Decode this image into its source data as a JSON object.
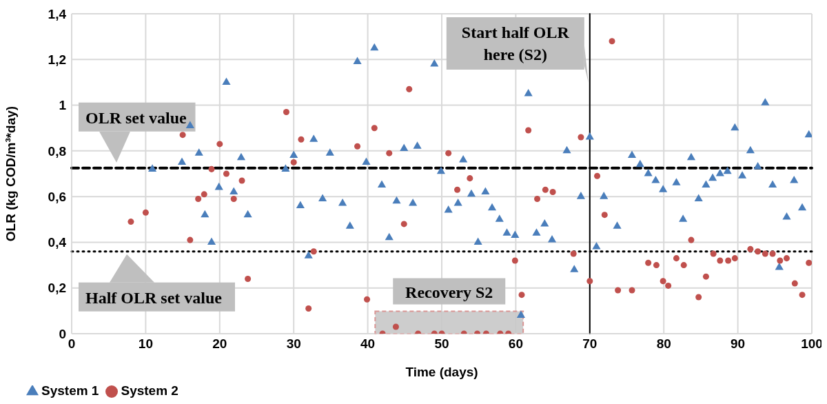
{
  "chart_data": {
    "type": "scatter",
    "xlabel": "Time (days)",
    "ylabel": "OLR (kg COD/m³*day)",
    "xlim": [
      0,
      100
    ],
    "xticks": [
      0,
      10,
      20,
      30,
      40,
      50,
      60,
      70,
      80,
      90,
      100
    ],
    "ylim": [
      0,
      1.4
    ],
    "yticks": [
      0,
      {
        "value": 0.2,
        "label": "0,2"
      },
      {
        "value": 0.4,
        "label": "0,4"
      },
      {
        "value": 0.6,
        "label": "0,6"
      },
      {
        "value": 0.8,
        "label": "0,8"
      },
      1,
      {
        "value": 1.2,
        "label": "1,2"
      },
      {
        "value": 1.4,
        "label": "1,4"
      }
    ],
    "grid": true,
    "legend": "bottom left",
    "series": [
      {
        "name": "System 1",
        "color": "#4a7ebb",
        "marker": "triangle",
        "x": [
          10.9,
          14.9,
          16.0,
          17.2,
          18.0,
          18.9,
          19.9,
          20.9,
          21.9,
          22.9,
          23.8,
          28.9,
          30.0,
          30.9,
          32.0,
          32.7,
          33.9,
          34.9,
          36.6,
          37.6,
          38.6,
          39.8,
          40.9,
          41.9,
          42.9,
          43.9,
          44.9,
          46.1,
          46.7,
          49.0,
          49.9,
          50.9,
          52.2,
          52.9,
          54.0,
          54.9,
          55.9,
          56.8,
          57.8,
          58.8,
          59.9,
          60.7,
          61.7,
          62.8,
          63.9,
          64.9,
          66.9,
          67.9,
          68.8,
          70.0,
          70.9,
          71.9,
          73.7,
          75.7,
          76.8,
          77.9,
          78.9,
          79.9,
          81.7,
          82.6,
          83.7,
          84.7,
          85.7,
          86.6,
          87.6,
          88.6,
          89.6,
          90.6,
          91.7,
          92.7,
          93.7,
          94.7,
          95.6,
          96.6,
          97.6,
          98.7,
          99.6
        ],
        "values": [
          0.72,
          0.75,
          0.91,
          0.79,
          0.52,
          0.4,
          0.64,
          1.1,
          0.62,
          0.77,
          0.52,
          0.72,
          0.78,
          0.56,
          0.34,
          0.85,
          0.59,
          0.79,
          0.57,
          0.47,
          1.19,
          0.75,
          1.25,
          0.65,
          0.42,
          0.58,
          0.81,
          0.57,
          0.82,
          1.18,
          0.71,
          0.54,
          0.57,
          0.76,
          0.61,
          0.4,
          0.62,
          0.55,
          0.5,
          0.44,
          0.43,
          0.08,
          1.05,
          0.44,
          0.48,
          0.41,
          0.8,
          0.28,
          0.6,
          0.86,
          0.38,
          0.6,
          0.47,
          0.78,
          0.74,
          0.7,
          0.67,
          0.63,
          0.66,
          0.5,
          0.77,
          0.59,
          0.65,
          0.68,
          0.7,
          0.71,
          0.9,
          0.69,
          0.8,
          0.73,
          1.01,
          0.65,
          0.29,
          0.51,
          0.67,
          0.55,
          0.87
        ]
      },
      {
        "name": "System 2",
        "color": "#c0504d",
        "marker": "circle",
        "x": [
          8.0,
          10.0,
          15.0,
          16.0,
          17.1,
          17.9,
          18.9,
          20.0,
          20.9,
          21.9,
          23.0,
          23.8,
          29.0,
          30.0,
          31.0,
          32.0,
          32.7,
          38.6,
          39.9,
          40.9,
          42.0,
          42.9,
          43.8,
          44.9,
          45.6,
          46.8,
          49.0,
          50.0,
          50.9,
          52.1,
          53.0,
          53.8,
          54.8,
          56.0,
          57.9,
          59.0,
          59.9,
          60.8,
          61.7,
          62.9,
          64.0,
          65.0,
          67.8,
          68.8,
          70.0,
          71.0,
          72.0,
          73.0,
          73.8,
          75.7,
          77.9,
          79.0,
          79.9,
          80.6,
          81.7,
          82.7,
          83.7,
          84.7,
          85.7,
          86.7,
          87.6,
          88.7,
          89.6,
          91.7,
          92.7,
          93.7,
          94.7,
          95.7,
          96.6,
          97.7,
          98.7,
          99.6
        ],
        "values": [
          0.49,
          0.53,
          0.87,
          0.41,
          0.59,
          0.61,
          0.72,
          0.83,
          0.7,
          0.59,
          0.67,
          0.24,
          0.97,
          0.75,
          0.85,
          0.11,
          0.36,
          0.82,
          0.15,
          0.9,
          0,
          0.79,
          0.03,
          0.48,
          1.07,
          0,
          0,
          0,
          0.79,
          0.63,
          0,
          0.68,
          0,
          0,
          0,
          0,
          0.32,
          0.17,
          0.89,
          0.59,
          0.63,
          0.62,
          0.35,
          0.86,
          0.23,
          0.69,
          0.52,
          1.28,
          0.19,
          0.19,
          0.31,
          0.3,
          0.23,
          0.21,
          0.33,
          0.3,
          0.41,
          0.16,
          0.25,
          0.35,
          0.32,
          0.32,
          0.33,
          0.37,
          0.36,
          0.35,
          0.35,
          0.32,
          0.33,
          0.22,
          0.17,
          0.31
        ]
      }
    ],
    "ref_lines": [
      {
        "axis": "y",
        "value": 0.725,
        "label": "OLR set value",
        "line_style": "dashed",
        "color": "#000000"
      },
      {
        "axis": "y",
        "value": 0.36,
        "label": "Half OLR set value",
        "line_style": "dotted",
        "color": "#000000"
      },
      {
        "axis": "x",
        "value": 70,
        "label": "Start half OLR here (S2)",
        "line_style": "solid",
        "color": "#000000"
      }
    ],
    "bands": [
      {
        "axis": "x",
        "from": 41,
        "to": 61,
        "label": "Recovery S2",
        "color": "#c8c8c8"
      }
    ]
  }
}
